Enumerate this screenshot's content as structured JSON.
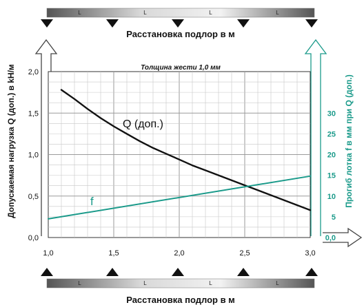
{
  "chart_data": {
    "type": "line",
    "title": "Толщина жести 1,0 мм",
    "xlabel_top": "Расстановка подлор в м",
    "xlabel_bottom": "Расстановка подлор в м",
    "support_label": "L",
    "ylabel_left": "Допускаемая нагрузка Q (доп.) в kH/м",
    "ylabel_right": "Прогиб лотка f в мм при Q (доп.)",
    "xlim": [
      1.0,
      3.0
    ],
    "ylim_left": [
      0.0,
      2.0
    ],
    "ylim_right": [
      0,
      40
    ],
    "x_ticks": [
      "1,0",
      "1,5",
      "2,0",
      "2,5",
      "3,0"
    ],
    "y_ticks_left": [
      "0,0",
      "0,5",
      "1,0",
      "1,5",
      "2,0"
    ],
    "y_ticks_right": [
      "0,0",
      "5",
      "10",
      "15",
      "20",
      "25",
      "30"
    ],
    "grid": true,
    "series": [
      {
        "name": "Q (доп.)",
        "axis": "left",
        "color": "#111111",
        "x": [
          1.1,
          1.2,
          1.3,
          1.4,
          1.5,
          1.6,
          1.7,
          1.8,
          1.9,
          2.0,
          2.1,
          2.2,
          2.3,
          2.4,
          2.5,
          2.6,
          2.7,
          2.8,
          2.9,
          3.0
        ],
        "y": [
          1.78,
          1.67,
          1.55,
          1.44,
          1.34,
          1.25,
          1.16,
          1.08,
          1.01,
          0.94,
          0.87,
          0.81,
          0.75,
          0.69,
          0.63,
          0.57,
          0.51,
          0.45,
          0.39,
          0.33
        ]
      },
      {
        "name": "f",
        "axis": "right",
        "color": "#1a9a8a",
        "x": [
          1.0,
          3.0
        ],
        "y": [
          4.5,
          14.8
        ]
      }
    ]
  }
}
